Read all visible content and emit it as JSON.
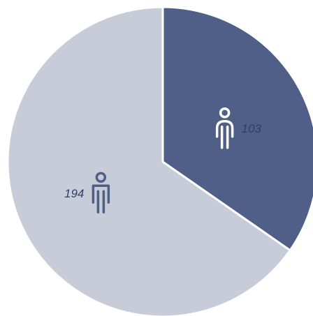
{
  "chart_data": {
    "type": "pie",
    "values": [
      103,
      194
    ],
    "colors": [
      "#4f5f87",
      "#c8ccd9"
    ],
    "icon_color": [
      "#ffffff",
      "#4f5f87"
    ],
    "icons": [
      "female",
      "male"
    ]
  }
}
